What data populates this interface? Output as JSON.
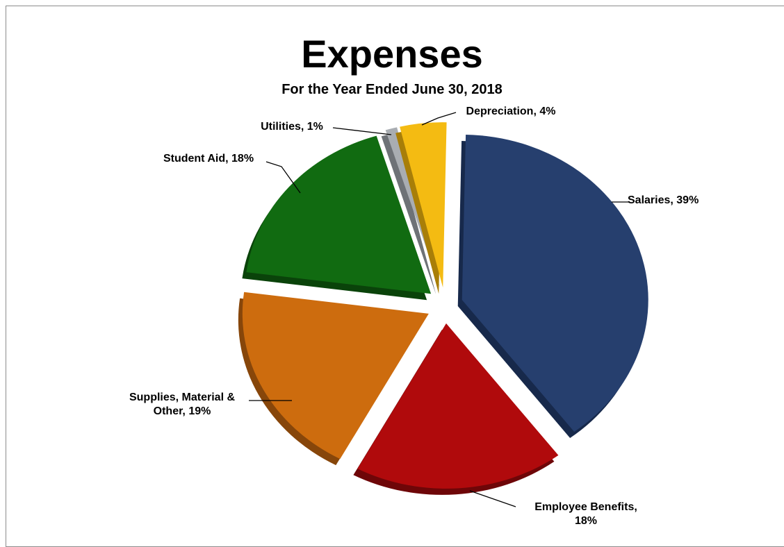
{
  "chart_data": {
    "type": "pie",
    "title": "Expenses",
    "subtitle": "For the Year Ended June 30, 2018",
    "slices": [
      {
        "name": "Salaries",
        "value": 39,
        "label": "Salaries, 39%",
        "color": "#263f6e",
        "side": "#17294b"
      },
      {
        "name": "Employee Benefits",
        "value": 18,
        "label": "Employee Benefits,|18%",
        "color": "#b00a0c",
        "side": "#6e0608"
      },
      {
        "name": "Supplies, Material & Other",
        "value": 19,
        "label": "Supplies, Material &|Other, 19%",
        "color": "#cd6c0e",
        "side": "#87460a"
      },
      {
        "name": "Student Aid",
        "value": 18,
        "label": "Student Aid, 18%",
        "color": "#116b11",
        "side": "#0a430a"
      },
      {
        "name": "Utilities",
        "value": 1,
        "label": "Utilities,  1%",
        "color": "#a9adb2",
        "side": "#6e7277"
      },
      {
        "name": "Depreciation",
        "value": 4,
        "label": "Depreciation, 4%",
        "color": "#f4bb12",
        "side": "#a87e08"
      }
    ],
    "legend": "none"
  }
}
